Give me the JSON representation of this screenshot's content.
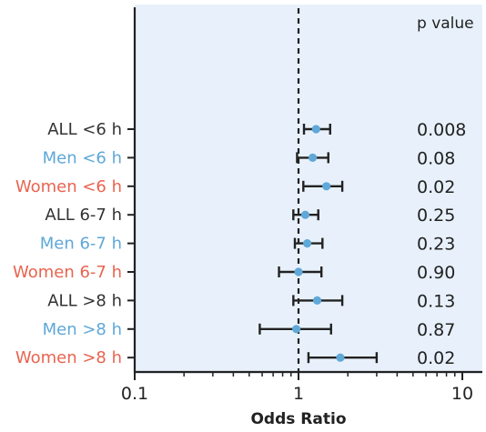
{
  "chart_data": {
    "type": "forest",
    "xscale": "log",
    "xlim": [
      0.1,
      12
    ],
    "xticks": [
      "0.1",
      "1",
      "10"
    ],
    "xticks_values": [
      0.1,
      1,
      10
    ],
    "xlabel": "Odds Ratio",
    "reference_line": 1,
    "pvalue_header": "p value",
    "colors": {
      "all": "#333333",
      "men": "#5fa8d8",
      "women": "#e8644f",
      "point": "#5fa8d8",
      "background": "#e8f1fb"
    },
    "rows": [
      {
        "label": "ALL <6 h",
        "group": "all",
        "or": 1.28,
        "lo": 1.08,
        "hi": 1.56,
        "p": "0.008"
      },
      {
        "label": "Men <6 h",
        "group": "men",
        "or": 1.22,
        "lo": 0.98,
        "hi": 1.52,
        "p": "0.08"
      },
      {
        "label": "Women <6 h",
        "group": "women",
        "or": 1.48,
        "lo": 1.07,
        "hi": 1.85,
        "p": "0.02"
      },
      {
        "label": "ALL 6-7 h",
        "group": "all",
        "or": 1.1,
        "lo": 0.93,
        "hi": 1.32,
        "p": "0.25"
      },
      {
        "label": "Men 6-7 h",
        "group": "men",
        "or": 1.13,
        "lo": 0.95,
        "hi": 1.4,
        "p": "0.23"
      },
      {
        "label": "Women 6-7 h",
        "group": "women",
        "or": 1.0,
        "lo": 0.76,
        "hi": 1.38,
        "p": "0.90"
      },
      {
        "label": "ALL >8 h",
        "group": "all",
        "or": 1.3,
        "lo": 0.93,
        "hi": 1.85,
        "p": "0.13"
      },
      {
        "label": "Men >8 h",
        "group": "men",
        "or": 0.97,
        "lo": 0.58,
        "hi": 1.58,
        "p": "0.87"
      },
      {
        "label": "Women >8 h",
        "group": "women",
        "or": 1.8,
        "lo": 1.15,
        "hi": 3.0,
        "p": "0.02"
      }
    ]
  }
}
